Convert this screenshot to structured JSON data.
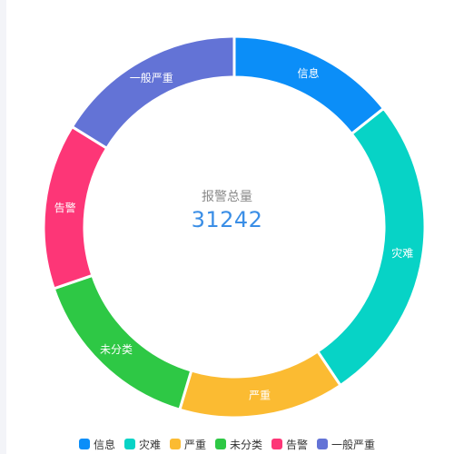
{
  "center": {
    "title": "报警总量",
    "value": "31242"
  },
  "chart_data": {
    "type": "pie",
    "variant": "donut",
    "legend_position": "bottom",
    "series": [
      {
        "name": "信息",
        "value": 4475,
        "color": "#0b8ef8"
      },
      {
        "name": "灾难",
        "value": 8210,
        "color": "#07d3c6"
      },
      {
        "name": "严重",
        "value": 4380,
        "color": "#fbbb32"
      },
      {
        "name": "未分类",
        "value": 4730,
        "color": "#2ec845"
      },
      {
        "name": "告警",
        "value": 4390,
        "color": "#fd3677"
      },
      {
        "name": "一般严重",
        "value": 5057,
        "color": "#6373d6"
      }
    ]
  }
}
